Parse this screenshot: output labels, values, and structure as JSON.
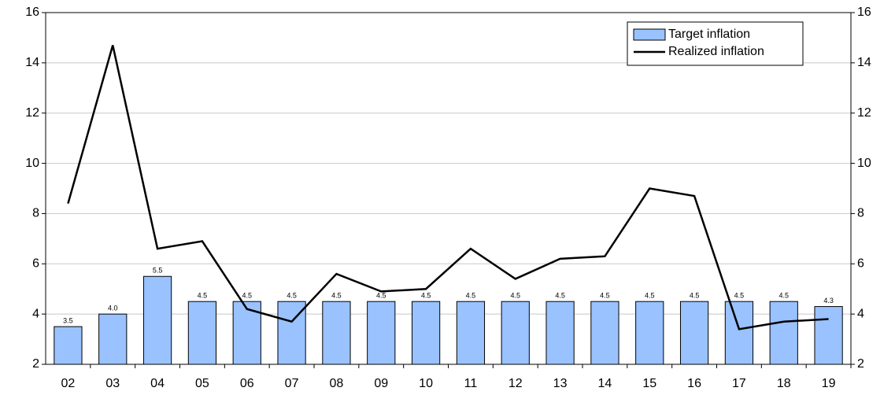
{
  "chart_data": {
    "type": "bar-line",
    "categories": [
      "02",
      "03",
      "04",
      "05",
      "06",
      "07",
      "08",
      "09",
      "10",
      "11",
      "12",
      "13",
      "14",
      "15",
      "16",
      "17",
      "18",
      "19"
    ],
    "series": [
      {
        "name": "Target inflation",
        "type": "bar",
        "color": "#99c2ff",
        "values": [
          3.5,
          4.0,
          5.5,
          4.5,
          4.5,
          4.5,
          4.5,
          4.5,
          4.5,
          4.5,
          4.5,
          4.5,
          4.5,
          4.5,
          4.5,
          4.5,
          4.5,
          4.3
        ],
        "value_labels": [
          "3.5",
          "4.0",
          "5.5",
          "4.5",
          "4.5",
          "4.5",
          "4.5",
          "4.5",
          "4.5",
          "4.5",
          "4.5",
          "4.5",
          "4.5",
          "4.5",
          "4.5",
          "4.5",
          "4.5",
          "4.3"
        ]
      },
      {
        "name": "Realized inflation",
        "type": "line",
        "color": "#000000",
        "axis": "y2",
        "values": [
          8.4,
          14.7,
          6.6,
          6.9,
          4.2,
          3.7,
          5.6,
          4.9,
          5.0,
          6.6,
          5.4,
          6.2,
          6.3,
          9.0,
          8.7,
          3.4,
          3.7,
          3.8
        ]
      }
    ],
    "ylim": [
      2,
      16
    ],
    "yticks": [
      2,
      4,
      6,
      8,
      10,
      12,
      14,
      16
    ],
    "y2lim": [
      2,
      16
    ],
    "y2ticks": [
      2,
      4,
      6,
      8,
      10,
      12,
      14,
      16
    ],
    "grid": true,
    "legend": "top-right"
  }
}
